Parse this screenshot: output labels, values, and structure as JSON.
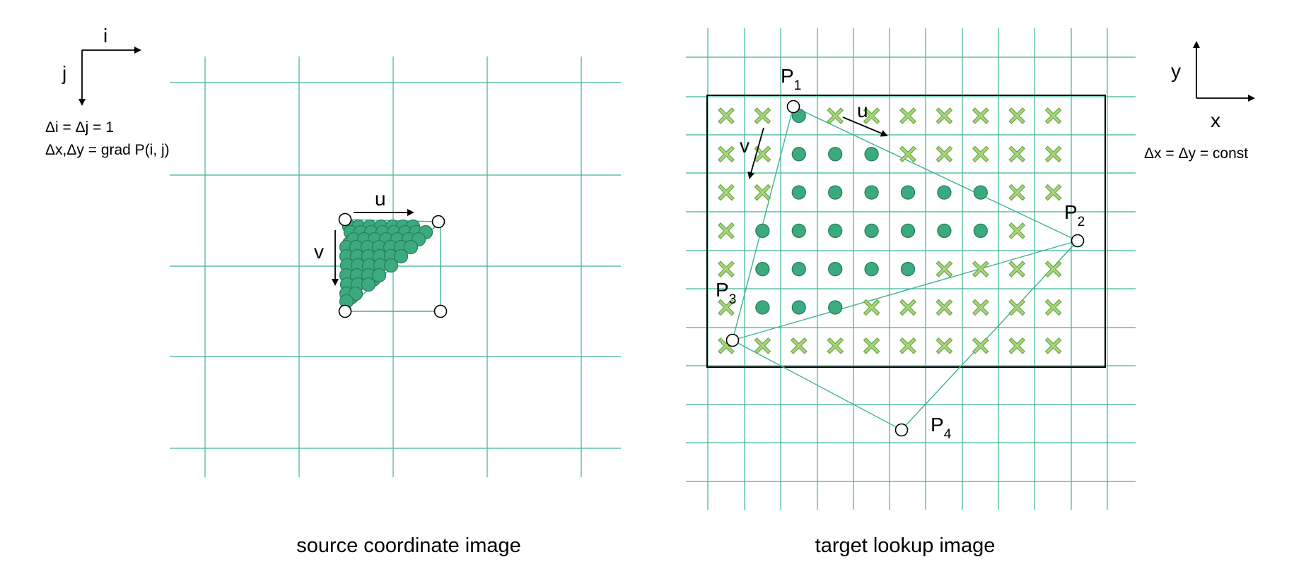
{
  "left": {
    "axis_i": "i",
    "axis_j": "j",
    "note_line1": "Δi = Δj = 1",
    "note_line2": "Δx,Δy = grad P(i, j)",
    "label_u": "u",
    "label_v": "v",
    "caption": "source coordinate image"
  },
  "right": {
    "axis_x": "x",
    "axis_y": "y",
    "note": "Δx = Δy = const",
    "label_u": "u",
    "label_v": "v",
    "p1": "P",
    "p1_sub": "1",
    "p2": "P",
    "p2_sub": "2",
    "p3": "P",
    "p3_sub": "3",
    "p4": "P",
    "p4_sub": "4",
    "caption": "target lookup image",
    "grid_cells": [
      "xxdxxxxxxx",
      "xxdddxxxxx",
      "xxddddddxx",
      "xdddddddx.",
      "xdddddxxxx",
      "xdddxxxxxx",
      "xxxxxxxxxx"
    ]
  },
  "colors": {
    "grid": "#3cb493",
    "dot_fill": "#3caa7f",
    "dot_stroke": "#2a7f5c",
    "cross_fill": "#a8d47c",
    "cross_stroke": "#6ea64a",
    "outline": "#000000"
  }
}
